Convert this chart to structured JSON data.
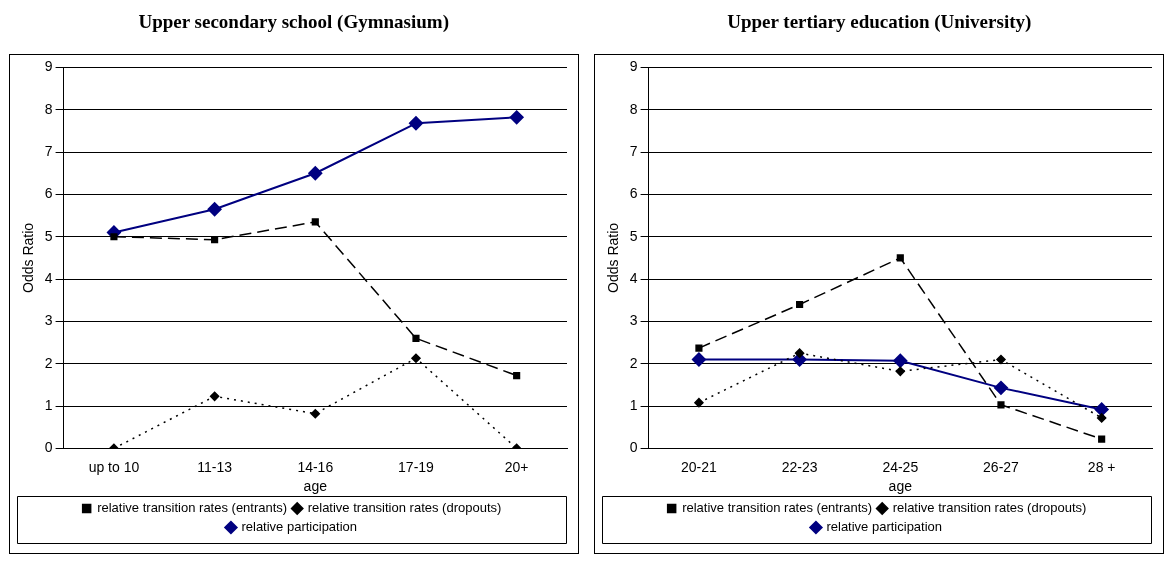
{
  "chart_data": [
    {
      "type": "line",
      "title": "Upper secondary school (Gymnasium)",
      "xlabel": "age",
      "ylabel": "Odds Ratio",
      "categories": [
        "up to 10",
        "11-13",
        "14-16",
        "17-19",
        "20+"
      ],
      "ylim": [
        0,
        9
      ],
      "yticks": [
        0,
        1,
        2,
        3,
        4,
        5,
        6,
        7,
        8,
        9
      ],
      "grid": "y",
      "legend": "bottom",
      "series": [
        {
          "name": "relative transition rates (entrants)",
          "color": "#000000",
          "line_style": "dashed",
          "marker": "square",
          "values": [
            5.0,
            4.93,
            5.35,
            2.6,
            1.72
          ]
        },
        {
          "name": "relative transition rates (dropouts)",
          "color": "#000000",
          "line_style": "dotted",
          "marker": "diamond",
          "values": [
            0,
            1.23,
            0.82,
            2.13,
            0
          ]
        },
        {
          "name": "relative participation",
          "color": "#000080",
          "line_style": "solid",
          "marker": "diamond",
          "values": [
            5.1,
            5.65,
            6.5,
            7.68,
            7.82
          ]
        }
      ]
    },
    {
      "type": "line",
      "title": "Upper tertiary education (University)",
      "xlabel": "age",
      "ylabel": "Odds Ratio",
      "categories": [
        "20-21",
        "22-23",
        "24-25",
        "26-27",
        "28 +"
      ],
      "ylim": [
        0,
        9
      ],
      "yticks": [
        0,
        1,
        2,
        3,
        4,
        5,
        6,
        7,
        8,
        9
      ],
      "grid": "y",
      "legend": "bottom",
      "series": [
        {
          "name": "relative transition rates (entrants)",
          "color": "#000000",
          "line_style": "dashed",
          "marker": "square",
          "values": [
            2.37,
            3.4,
            4.5,
            1.03,
            0.22
          ]
        },
        {
          "name": "relative transition rates (dropouts)",
          "color": "#000000",
          "line_style": "dotted",
          "marker": "diamond",
          "values": [
            1.08,
            2.25,
            1.82,
            2.1,
            0.72
          ]
        },
        {
          "name": "relative participation",
          "color": "#000080",
          "line_style": "solid",
          "marker": "diamond",
          "values": [
            2.1,
            2.1,
            2.07,
            1.43,
            0.92
          ]
        }
      ]
    }
  ]
}
